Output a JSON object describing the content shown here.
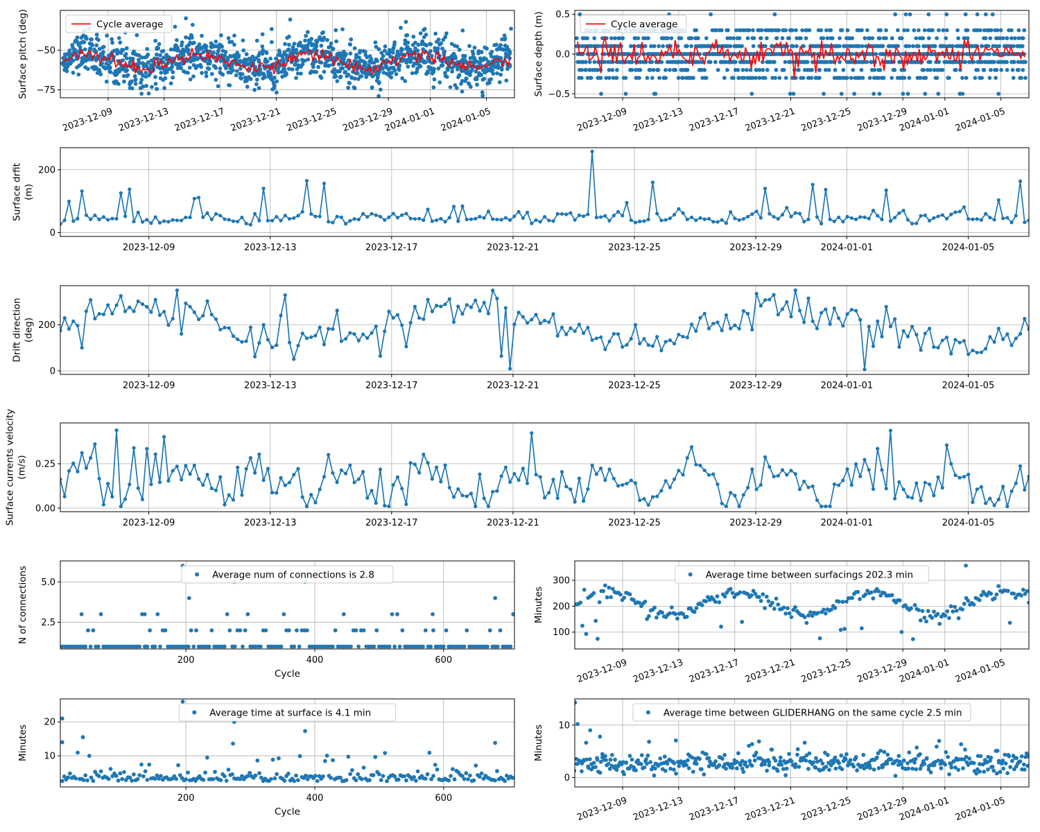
{
  "colors": {
    "series": "#1f77b4",
    "average": "#ff0000",
    "grid": "#b0b0b0",
    "axis": "#000000"
  },
  "chart_data": [
    {
      "id": "p1",
      "type": "scatter",
      "ylabel_lines": [
        "Surface pitch (deg)"
      ],
      "xaxis": "date",
      "xlim": [
        "2023-12-05T14:00",
        "2024-01-07T00:00"
      ],
      "ylim": [
        -80,
        -25
      ],
      "xticks": [
        "2023-12-09",
        "2023-12-13",
        "2023-12-17",
        "2023-12-21",
        "2023-12-25",
        "2023-12-29",
        "2024-01-01",
        "2024-01-05"
      ],
      "xtick_rotation": 20,
      "yticks": [
        -75,
        -50
      ],
      "grid": true,
      "legend": {
        "position": "upper-left",
        "entries": [
          {
            "label": "Cycle average",
            "kind": "line",
            "color": "#ff0000"
          }
        ]
      },
      "series": [
        {
          "kind": "dots",
          "color": "#1f77b4",
          "points": "generated"
        },
        {
          "kind": "line",
          "color": "#ff0000",
          "points": "generated"
        }
      ],
      "gen": {
        "mode": "pitch",
        "center": -57,
        "spread": 6
      }
    },
    {
      "id": "p2",
      "type": "scatter",
      "ylabel_lines": [
        "Surface depth (m)"
      ],
      "xaxis": "date",
      "xlim": [
        "2023-12-05T14:00",
        "2024-01-07T00:00"
      ],
      "ylim": [
        -0.55,
        0.55
      ],
      "xticks": [
        "2023-12-09",
        "2023-12-13",
        "2023-12-17",
        "2023-12-21",
        "2023-12-25",
        "2023-12-29",
        "2024-01-01",
        "2024-01-05"
      ],
      "xtick_rotation": 20,
      "yticks": [
        -0.5,
        0.0,
        0.5
      ],
      "grid": true,
      "legend": {
        "position": "upper-left",
        "entries": [
          {
            "label": "Cycle average",
            "kind": "line",
            "color": "#ff0000"
          }
        ]
      },
      "series": [
        {
          "kind": "dots",
          "color": "#1f77b4",
          "points": "generated"
        },
        {
          "kind": "line",
          "color": "#ff0000",
          "points": "generated"
        }
      ],
      "gen": {
        "mode": "depth"
      }
    },
    {
      "id": "p3",
      "type": "line",
      "ylabel_lines": [
        "Surface drfit",
        "(m)"
      ],
      "xaxis": "date",
      "xlim": [
        "2023-12-06T02:00",
        "2024-01-07T00:00"
      ],
      "ylim": [
        -12,
        270
      ],
      "xticks": [
        "2023-12-09",
        "2023-12-13",
        "2023-12-17",
        "2023-12-21",
        "2023-12-25",
        "2023-12-29",
        "2024-01-01",
        "2024-01-05"
      ],
      "xtick_rotation": 0,
      "yticks": [
        0,
        200
      ],
      "grid": true,
      "series": [
        {
          "kind": "line+markers",
          "color": "#1f77b4",
          "points": "generated"
        }
      ],
      "gen": {
        "mode": "drift"
      }
    },
    {
      "id": "p4",
      "type": "line",
      "ylabel_lines": [
        "Drift direction",
        "(deg)"
      ],
      "xaxis": "date",
      "xlim": [
        "2023-12-06T02:00",
        "2024-01-07T00:00"
      ],
      "ylim": [
        -15,
        370
      ],
      "xticks": [
        "2023-12-09",
        "2023-12-13",
        "2023-12-17",
        "2023-12-21",
        "2023-12-25",
        "2023-12-29",
        "2024-01-01",
        "2024-01-05"
      ],
      "xtick_rotation": 0,
      "yticks": [
        0,
        200
      ],
      "grid": true,
      "series": [
        {
          "kind": "line+markers",
          "color": "#1f77b4",
          "points": "generated"
        }
      ],
      "gen": {
        "mode": "direction"
      }
    },
    {
      "id": "p5",
      "type": "line",
      "ylabel_lines": [
        "Surface currents velocity",
        "(m/s)"
      ],
      "xaxis": "date",
      "xlim": [
        "2023-12-06T02:00",
        "2024-01-07T00:00"
      ],
      "ylim": [
        -0.02,
        0.48
      ],
      "xticks": [
        "2023-12-09",
        "2023-12-13",
        "2023-12-17",
        "2023-12-21",
        "2023-12-25",
        "2023-12-29",
        "2024-01-01",
        "2024-01-05"
      ],
      "xtick_rotation": 0,
      "yticks": [
        0.0,
        0.25
      ],
      "grid": true,
      "series": [
        {
          "kind": "line+markers",
          "color": "#1f77b4",
          "points": "generated"
        }
      ],
      "gen": {
        "mode": "velocity"
      }
    },
    {
      "id": "p6",
      "type": "scatter",
      "ylabel_lines": [
        "N of connections"
      ],
      "xlabel": "Cycle",
      "xaxis": "num",
      "xlim": [
        5,
        710
      ],
      "ylim": [
        0.85,
        6.3
      ],
      "xticks": [
        200,
        400,
        600
      ],
      "xtick_rotation": 0,
      "yticks": [
        2.5,
        5.0
      ],
      "grid": true,
      "legend": {
        "position": "upper-center",
        "entries": [
          {
            "label": "Average num of connections is 2.8",
            "kind": "dot",
            "color": "#1f77b4"
          }
        ]
      },
      "series": [
        {
          "kind": "dots",
          "color": "#1f77b4",
          "points": "generated"
        }
      ],
      "gen": {
        "mode": "connections"
      }
    },
    {
      "id": "p7",
      "type": "scatter",
      "ylabel_lines": [
        "Minutes"
      ],
      "xaxis": "date",
      "xlim": [
        "2023-12-05T14:00",
        "2024-01-07T00:00"
      ],
      "ylim": [
        35,
        375
      ],
      "xticks": [
        "2023-12-09",
        "2023-12-13",
        "2023-12-17",
        "2023-12-21",
        "2023-12-25",
        "2023-12-29",
        "2024-01-01",
        "2024-01-05"
      ],
      "xtick_rotation": 20,
      "yticks": [
        100,
        200,
        300
      ],
      "grid": true,
      "legend": {
        "position": "upper-center",
        "entries": [
          {
            "label": "Average time between surfacings 202.3 min",
            "kind": "dot",
            "color": "#1f77b4"
          }
        ]
      },
      "series": [
        {
          "kind": "dots",
          "color": "#1f77b4",
          "points": "generated"
        }
      ],
      "gen": {
        "mode": "between"
      }
    },
    {
      "id": "p8",
      "type": "scatter",
      "ylabel_lines": [
        "Minutes"
      ],
      "xlabel": "Cycle",
      "xaxis": "num",
      "xlim": [
        5,
        710
      ],
      "ylim": [
        0.8,
        26.8
      ],
      "xticks": [
        200,
        400,
        600
      ],
      "xtick_rotation": 0,
      "yticks": [
        10,
        20
      ],
      "grid": true,
      "legend": {
        "position": "upper-center",
        "entries": [
          {
            "label": "Average time at surface is 4.1 min",
            "kind": "dot",
            "color": "#1f77b4"
          }
        ]
      },
      "series": [
        {
          "kind": "dots",
          "color": "#1f77b4",
          "points": "generated"
        }
      ],
      "gen": {
        "mode": "atsurface"
      }
    },
    {
      "id": "p9",
      "type": "scatter",
      "ylabel_lines": [
        "Minutes"
      ],
      "xaxis": "date",
      "xlim": [
        "2023-12-05T14:00",
        "2024-01-07T00:00"
      ],
      "ylim": [
        -1.8,
        15
      ],
      "xticks": [
        "2023-12-09",
        "2023-12-13",
        "2023-12-17",
        "2023-12-21",
        "2023-12-25",
        "2023-12-29",
        "2024-01-01",
        "2024-01-05"
      ],
      "xtick_rotation": 20,
      "yticks": [
        0,
        10
      ],
      "grid": true,
      "legend": {
        "position": "upper-center",
        "entries": [
          {
            "label": "Average time between GLIDERHANG on the same cycle 2.5 min",
            "kind": "dot",
            "color": "#1f77b4"
          }
        ]
      },
      "series": [
        {
          "kind": "dots",
          "color": "#1f77b4",
          "points": "generated"
        }
      ],
      "gen": {
        "mode": "gliderhang"
      }
    }
  ]
}
